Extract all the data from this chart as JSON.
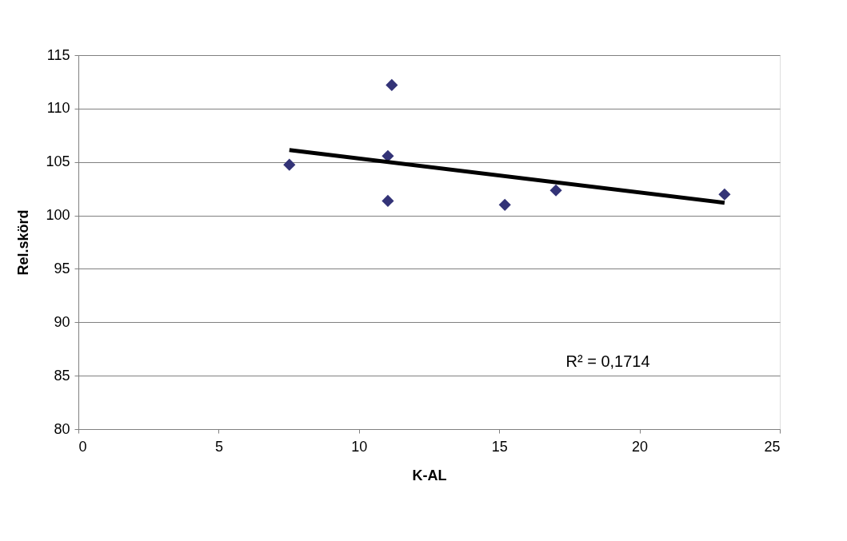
{
  "chart_data": {
    "type": "scatter",
    "xlabel": "K-AL",
    "ylabel": "Rel.skörd",
    "x": [
      7.52,
      11.17,
      11.03,
      11.03,
      15.2,
      17.02,
      23.03
    ],
    "series": [
      {
        "color": "#333377",
        "marker": "diamond",
        "values": [
          104.74,
          112.2,
          105.56,
          101.36,
          100.99,
          102.34,
          101.97
        ]
      },
      {
        "type": "line",
        "color": "#000000",
        "x": [
          7.52,
          23.03
        ],
        "values": [
          106.12,
          101.19
        ],
        "marker": "none",
        "line_style": "solid"
      }
    ],
    "annotations": [
      "R² = 0,1714"
    ],
    "xlim": [
      0,
      25
    ],
    "xticks": [
      0,
      5,
      10,
      15,
      20,
      25
    ],
    "ylim": [
      80,
      115
    ],
    "yticks": [
      80,
      85,
      90,
      95,
      100,
      105,
      110,
      115
    ],
    "grid": "y",
    "legend": false
  }
}
